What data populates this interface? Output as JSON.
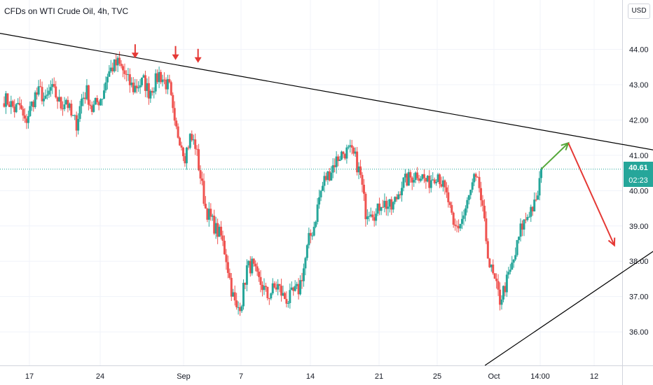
{
  "header": {
    "title": "CFDs on WTI Crude Oil, 4h, TVC",
    "currency": "USD"
  },
  "last_price": {
    "value": "40.61",
    "countdown": "02:23",
    "color": "#26a69a"
  },
  "colors": {
    "up": "#26a69a",
    "down": "#ef5350",
    "trendline": "#000000",
    "arrow_up": "#56a83a",
    "arrow_down": "#e53935",
    "marker": "#e53935"
  },
  "chart_data": {
    "type": "candlestick",
    "y_axis": {
      "ticks": [
        "36.00",
        "37.00",
        "38.00",
        "39.00",
        "40.00",
        "41.00",
        "42.00",
        "43.00",
        "44.00"
      ],
      "ylim": [
        35.05,
        45.4
      ]
    },
    "x_axis": {
      "ticks": [
        "17",
        "24",
        "Sep",
        "7",
        "14",
        "21",
        "25",
        "Oct",
        "14:00",
        "12"
      ]
    },
    "price_series": [
      42.6,
      42.5,
      42.3,
      42.4,
      41.9,
      42.3,
      42.7,
      42.8,
      42.5,
      42.9,
      42.7,
      42.4,
      42.6,
      42.1,
      41.9,
      42.6,
      42.8,
      42.3,
      42.5,
      42.7,
      43.3,
      43.5,
      43.6,
      43.4,
      43.1,
      42.9,
      43.0,
      43.1,
      42.8,
      43.0,
      43.3,
      43.1,
      42.9,
      41.8,
      41.5,
      41.0,
      41.5,
      41.3,
      40.4,
      39.5,
      39.2,
      38.9,
      38.7,
      38.1,
      37.2,
      36.6,
      36.9,
      37.8,
      37.9,
      37.5,
      37.3,
      37.0,
      37.2,
      37.3,
      37.0,
      36.9,
      37.1,
      37.2,
      37.8,
      38.6,
      39.0,
      39.8,
      40.3,
      40.5,
      40.8,
      41.0,
      41.1,
      41.1,
      40.9,
      40.4,
      39.4,
      39.5,
      39.3,
      39.7,
      39.6,
      39.5,
      39.8,
      40.2,
      40.3,
      40.4,
      40.5,
      40.4,
      40.2,
      40.4,
      40.5,
      40.1,
      39.7,
      38.9,
      39.0,
      39.3,
      39.8,
      40.3,
      40.1,
      39.0,
      37.9,
      37.4,
      36.9,
      37.3,
      37.7,
      38.2,
      38.9,
      39.2,
      39.5,
      39.6,
      40.61
    ],
    "trendlines": [
      {
        "from": {
          "t": -9.5,
          "v": 44.68
        },
        "to": {
          "t": 134.0,
          "v": 40.97
        }
      },
      {
        "from": {
          "t": 94.0,
          "v": 35.05
        },
        "to": {
          "t": 134.0,
          "v": 38.98
        }
      }
    ],
    "projection_arrows": [
      {
        "direction": "up",
        "from": {
          "t": 105.0,
          "v": 40.61
        },
        "to": {
          "t": 110.3,
          "v": 41.35
        }
      },
      {
        "direction": "down",
        "from": {
          "t": 110.3,
          "v": 41.35
        },
        "to": {
          "t": 119.3,
          "v": 38.45
        }
      }
    ],
    "markers": [
      {
        "type": "down-arrow",
        "t": 25.6,
        "v": 43.75
      },
      {
        "type": "down-arrow",
        "t": 33.5,
        "v": 43.7
      },
      {
        "type": "down-arrow",
        "t": 37.9,
        "v": 43.62
      }
    ],
    "current_price_line": 40.61
  }
}
